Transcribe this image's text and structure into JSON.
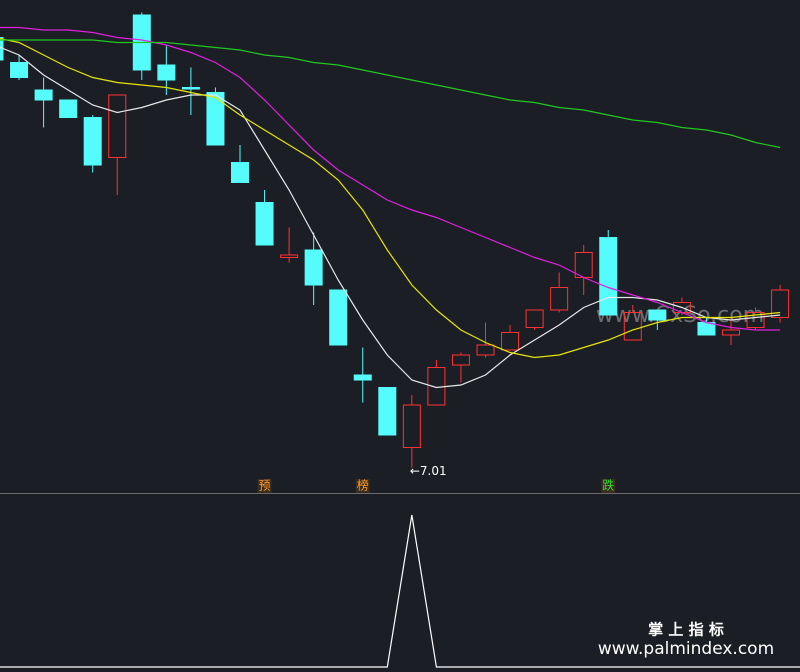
{
  "chart_data": {
    "type": "candlestick",
    "ylim": [
      6.92,
      8.88
    ],
    "up_color": "#ff3232",
    "down_color": "#54fcfc",
    "open": [
      8.73,
      8.63,
      8.52,
      8.48,
      8.41,
      8.25,
      8.82,
      8.62,
      8.53,
      8.51,
      8.23,
      8.07,
      7.85,
      7.88,
      7.72,
      7.38,
      7.33,
      7.09,
      7.26,
      7.42,
      7.46,
      7.48,
      7.57,
      7.64,
      7.77,
      7.93,
      7.52,
      7.64,
      7.63,
      7.59,
      7.54,
      7.57,
      7.61
    ],
    "high": [
      8.74,
      8.66,
      8.57,
      8.48,
      8.42,
      8.5,
      8.83,
      8.7,
      8.61,
      8.53,
      8.3,
      8.12,
      7.97,
      7.95,
      7.72,
      7.49,
      7.33,
      7.3,
      7.44,
      7.47,
      7.59,
      7.58,
      7.64,
      7.79,
      7.9,
      7.96,
      7.66,
      7.64,
      7.69,
      7.61,
      7.61,
      7.65,
      7.74
    ],
    "low": [
      8.63,
      8.56,
      8.37,
      8.41,
      8.19,
      8.1,
      8.56,
      8.5,
      8.42,
      8.3,
      8.15,
      7.9,
      7.83,
      7.66,
      7.5,
      7.27,
      7.14,
      7.01,
      7.26,
      7.35,
      7.45,
      7.48,
      7.56,
      7.63,
      7.7,
      7.62,
      7.52,
      7.56,
      7.62,
      7.54,
      7.5,
      7.56,
      7.59
    ],
    "close": [
      8.64,
      8.57,
      8.48,
      8.41,
      8.22,
      8.5,
      8.6,
      8.56,
      8.53,
      8.3,
      8.15,
      7.9,
      7.86,
      7.74,
      7.5,
      7.36,
      7.14,
      7.26,
      7.41,
      7.46,
      7.5,
      7.55,
      7.64,
      7.73,
      7.87,
      7.62,
      7.63,
      7.6,
      7.67,
      7.54,
      7.56,
      7.63,
      7.72
    ],
    "lines": [
      {
        "color": "#e8e8e8",
        "values": [
          8.7,
          8.66,
          8.58,
          8.52,
          8.46,
          8.43,
          8.45,
          8.48,
          8.5,
          8.5,
          8.44,
          8.28,
          8.12,
          7.94,
          7.76,
          7.6,
          7.46,
          7.36,
          7.33,
          7.34,
          7.38,
          7.46,
          7.52,
          7.58,
          7.65,
          7.69,
          7.69,
          7.68,
          7.65,
          7.61,
          7.6,
          7.61,
          7.62
        ]
      },
      {
        "color": "#e6e600",
        "values": [
          8.73,
          8.71,
          8.66,
          8.61,
          8.57,
          8.55,
          8.54,
          8.53,
          8.51,
          8.49,
          8.42,
          8.36,
          8.3,
          8.24,
          8.16,
          8.04,
          7.88,
          7.74,
          7.64,
          7.56,
          7.51,
          7.47,
          7.45,
          7.46,
          7.49,
          7.52,
          7.56,
          7.59,
          7.61,
          7.61,
          7.61,
          7.62,
          7.63
        ]
      },
      {
        "color": "#e020e0",
        "values": [
          8.77,
          8.77,
          8.76,
          8.76,
          8.75,
          8.73,
          8.72,
          8.7,
          8.67,
          8.63,
          8.57,
          8.48,
          8.38,
          8.28,
          8.2,
          8.14,
          8.08,
          8.04,
          8.01,
          7.97,
          7.93,
          7.89,
          7.85,
          7.82,
          7.77,
          7.73,
          7.7,
          7.67,
          7.63,
          7.59,
          7.57,
          7.56,
          7.56
        ]
      },
      {
        "color": "#20c820",
        "values": [
          8.72,
          8.72,
          8.72,
          8.72,
          8.72,
          8.71,
          8.71,
          8.71,
          8.7,
          8.69,
          8.68,
          8.66,
          8.65,
          8.63,
          8.62,
          8.6,
          8.58,
          8.56,
          8.54,
          8.52,
          8.5,
          8.48,
          8.47,
          8.45,
          8.44,
          8.42,
          8.4,
          8.39,
          8.37,
          8.36,
          8.34,
          8.31,
          8.29
        ]
      }
    ],
    "low_label": {
      "index": 17,
      "text": "←7.01"
    },
    "signals": [
      {
        "index": 11,
        "text": "预",
        "color": "#ff9a2e"
      },
      {
        "index": 15,
        "text": "榜",
        "color": "#ff9a2e"
      },
      {
        "index": 25,
        "text": "跌",
        "color": "#33dd33"
      }
    ],
    "indicator": {
      "color": "#ffffff",
      "ylim": [
        0,
        1
      ],
      "values": [
        0,
        0,
        0,
        0,
        0,
        0,
        0,
        0,
        0,
        0,
        0,
        0,
        0,
        0,
        0,
        0,
        0,
        1,
        0,
        0,
        0,
        0,
        0,
        0,
        0,
        0,
        0,
        0,
        0,
        0,
        0,
        0,
        0
      ]
    }
  },
  "watermark": "www.CxSo.com",
  "footer": {
    "title": "掌 上 指 标",
    "url": "www.palmindex.com"
  }
}
